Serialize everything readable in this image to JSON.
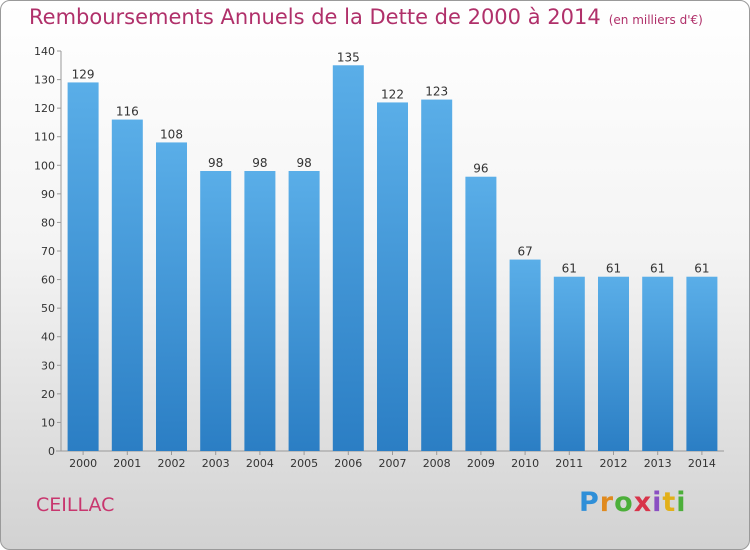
{
  "header": {
    "title": "Remboursements Annuels de la Dette de 2000 à 2014",
    "unit": "(en milliers d'€)"
  },
  "footer": {
    "commune": "CEILLAC",
    "logo_text": "Proxiti"
  },
  "colors": {
    "title": "#b0306a",
    "bar_top": "#5aaee8",
    "bar_bottom": "#2b7ec4"
  },
  "chart_data": {
    "type": "bar",
    "categories": [
      "2000",
      "2001",
      "2002",
      "2003",
      "2004",
      "2005",
      "2006",
      "2007",
      "2008",
      "2009",
      "2010",
      "2011",
      "2012",
      "2013",
      "2014"
    ],
    "values": [
      129,
      116,
      108,
      98,
      98,
      98,
      135,
      122,
      123,
      96,
      67,
      61,
      61,
      61,
      61
    ],
    "ylim": [
      0,
      140
    ],
    "yticks": [
      0,
      10,
      20,
      30,
      40,
      50,
      60,
      70,
      80,
      90,
      100,
      110,
      120,
      130,
      140
    ],
    "grid": false,
    "data_labels": true,
    "xlabel": "",
    "ylabel": ""
  }
}
